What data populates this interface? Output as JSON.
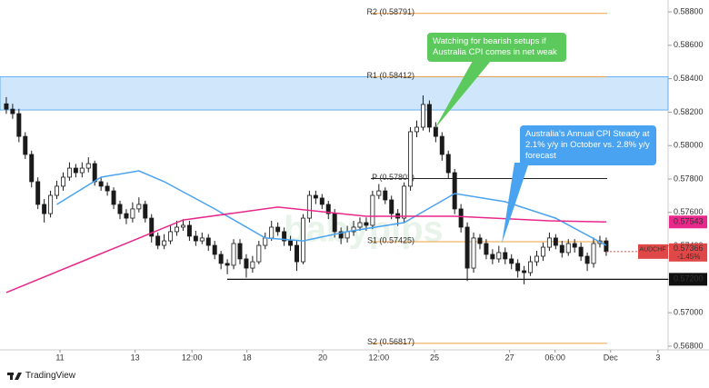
{
  "chart_data": {
    "type": "candlestick",
    "symbol": "AUDCHF",
    "change": "-1.45%",
    "watermark": "babypips",
    "brand": "TradingView",
    "up_color": "#ffffff",
    "down_color": "#1a1a1a",
    "ylim": [
      0.56778,
      0.58871
    ],
    "yticks": [
      {
        "value": 0.568,
        "label": "0.56800"
      },
      {
        "value": 0.57,
        "label": "0.57000"
      },
      {
        "value": 0.572,
        "label": "0.57200"
      },
      {
        "value": 0.574,
        "label": "0.57400"
      },
      {
        "value": 0.576,
        "label": "0.57600"
      },
      {
        "value": 0.578,
        "label": "0.57800"
      },
      {
        "value": 0.58,
        "label": "0.58000"
      },
      {
        "value": 0.582,
        "label": "0.58200"
      },
      {
        "value": 0.584,
        "label": "0.58400"
      },
      {
        "value": 0.586,
        "label": "0.58600"
      },
      {
        "value": 0.588,
        "label": "0.58800"
      }
    ],
    "xlim": [
      -1,
      104.8
    ],
    "xticks": [
      {
        "value": 8.5,
        "label": "11"
      },
      {
        "value": 20.4,
        "label": "13"
      },
      {
        "value": 29.4,
        "label": "12:00"
      },
      {
        "value": 38.1,
        "label": "18"
      },
      {
        "value": 50.1,
        "label": "20"
      },
      {
        "value": 59,
        "label": "12:00"
      },
      {
        "value": 67.8,
        "label": "25"
      },
      {
        "value": 79.7,
        "label": "27"
      },
      {
        "value": 86.9,
        "label": "06:00"
      },
      {
        "value": 95.7,
        "label": "Dec"
      },
      {
        "value": 103.2,
        "label": "3"
      }
    ],
    "open": [
      0.5825,
      0.58218,
      0.58191,
      0.58055,
      0.57947,
      0.57784,
      0.57648,
      0.57593,
      0.57702,
      0.57757,
      0.57811,
      0.57865,
      0.57838,
      0.57865,
      0.57892,
      0.57784,
      0.57757,
      0.57729,
      0.57648,
      0.57593,
      0.57566,
      0.57621,
      0.57648,
      0.57566,
      0.57458,
      0.57403,
      0.5743,
      0.57485,
      0.57512,
      0.57523,
      0.57458,
      0.5743,
      0.57447,
      0.57403,
      0.57349,
      0.57295,
      0.57284,
      0.57414,
      0.57322,
      0.57267,
      0.57305,
      0.57403,
      0.57447,
      0.57512,
      0.57485,
      0.5743,
      0.57403,
      0.57305,
      0.57566,
      0.57702,
      0.57686,
      0.57648,
      0.57593,
      0.57485,
      0.57447,
      0.57485,
      0.57512,
      0.57539,
      0.57523,
      0.57702,
      0.57729,
      0.57675,
      0.57593,
      0.57566,
      0.57757,
      0.58083,
      0.5811,
      0.58246,
      0.5811,
      0.58055,
      0.57947,
      0.57838,
      0.57621,
      0.57512,
      0.57267,
      0.57447,
      0.57414,
      0.57349,
      0.57322,
      0.5736,
      0.57322,
      0.57295,
      0.57251,
      0.5724,
      0.57305,
      0.57338,
      0.57392,
      0.57447,
      0.57403,
      0.5736,
      0.57414,
      0.57392,
      0.57338,
      0.57295,
      0.57414,
      0.5743
    ],
    "high": [
      0.5829,
      0.5825,
      0.5822,
      0.5808,
      0.5797,
      0.5781,
      0.5768,
      0.5773,
      0.5779,
      0.5784,
      0.579,
      0.5789,
      0.579,
      0.5793,
      0.5791,
      0.5781,
      0.5778,
      0.5775,
      0.5767,
      0.5762,
      0.5766,
      0.5769,
      0.5767,
      0.5759,
      0.5748,
      0.5747,
      0.5752,
      0.5755,
      0.5756,
      0.5755,
      0.5749,
      0.5748,
      0.5747,
      0.5743,
      0.5737,
      0.5732,
      0.5744,
      0.5744,
      0.5735,
      0.5734,
      0.5743,
      0.5748,
      0.5755,
      0.5754,
      0.5751,
      0.5746,
      0.5743,
      0.5759,
      0.5773,
      0.5773,
      0.5771,
      0.5767,
      0.5762,
      0.5751,
      0.5752,
      0.5755,
      0.5757,
      0.5757,
      0.5773,
      0.5777,
      0.5775,
      0.577,
      0.5762,
      0.5778,
      0.5811,
      0.5815,
      0.583,
      0.5827,
      0.5814,
      0.5808,
      0.5797,
      0.5786,
      0.5765,
      0.5754,
      0.5748,
      0.5747,
      0.5744,
      0.5738,
      0.574,
      0.5739,
      0.5735,
      0.5732,
      0.5728,
      0.5734,
      0.5737,
      0.5742,
      0.5748,
      0.5747,
      0.5743,
      0.5744,
      0.5744,
      0.5742,
      0.5736,
      0.5745,
      0.5746,
      0.5745
    ],
    "low": [
      0.5819,
      0.5816,
      0.5802,
      0.5792,
      0.5775,
      0.5762,
      0.5754,
      0.5757,
      0.5768,
      0.5773,
      0.5779,
      0.5781,
      0.5781,
      0.5784,
      0.5776,
      0.5773,
      0.577,
      0.5762,
      0.5756,
      0.5753,
      0.5754,
      0.576,
      0.5754,
      0.5742,
      0.5738,
      0.5738,
      0.5741,
      0.5746,
      0.5749,
      0.5743,
      0.574,
      0.5741,
      0.5737,
      0.5732,
      0.5726,
      0.5723,
      0.5726,
      0.5729,
      0.5721,
      0.5724,
      0.5729,
      0.5738,
      0.5743,
      0.5746,
      0.574,
      0.5737,
      0.5725,
      0.5729,
      0.5754,
      0.5765,
      0.5762,
      0.5756,
      0.5745,
      0.5741,
      0.5742,
      0.5746,
      0.5749,
      0.5749,
      0.575,
      0.5768,
      0.5765,
      0.5756,
      0.5752,
      0.5754,
      0.5773,
      0.5805,
      0.5809,
      0.5808,
      0.5802,
      0.5791,
      0.578,
      0.5759,
      0.5748,
      0.5719,
      0.5724,
      0.5738,
      0.5732,
      0.5729,
      0.573,
      0.5729,
      0.5726,
      0.5721,
      0.5717,
      0.5722,
      0.5728,
      0.5731,
      0.5737,
      0.5738,
      0.5733,
      0.5734,
      0.5736,
      0.5731,
      0.5725,
      0.5727,
      0.5739,
      0.5734
    ],
    "close": [
      0.58218,
      0.58191,
      0.58055,
      0.57947,
      0.57784,
      0.57648,
      0.57593,
      0.57702,
      0.57757,
      0.57811,
      0.57865,
      0.57838,
      0.57865,
      0.57892,
      0.57784,
      0.57757,
      0.57729,
      0.57648,
      0.57593,
      0.57566,
      0.57621,
      0.57648,
      0.57566,
      0.57458,
      0.57403,
      0.5743,
      0.57485,
      0.57512,
      0.57523,
      0.57458,
      0.5743,
      0.57447,
      0.57403,
      0.57349,
      0.57295,
      0.57284,
      0.57414,
      0.57322,
      0.57267,
      0.57305,
      0.57403,
      0.57447,
      0.57512,
      0.57485,
      0.5743,
      0.57403,
      0.57305,
      0.57566,
      0.57702,
      0.57686,
      0.57648,
      0.57593,
      0.57485,
      0.57447,
      0.57485,
      0.57512,
      0.57539,
      0.57523,
      0.57702,
      0.57729,
      0.57675,
      0.57593,
      0.57566,
      0.57757,
      0.58083,
      0.5811,
      0.58246,
      0.5811,
      0.58055,
      0.57947,
      0.57838,
      0.57621,
      0.57512,
      0.57267,
      0.57447,
      0.57414,
      0.57349,
      0.57322,
      0.5736,
      0.57322,
      0.57295,
      0.57251,
      0.5724,
      0.57305,
      0.57338,
      0.57392,
      0.57447,
      0.57403,
      0.5736,
      0.57414,
      0.57392,
      0.57338,
      0.57295,
      0.57414,
      0.5743,
      0.57366
    ],
    "lines": [
      {
        "color": "#4aa3f0",
        "x": [
          8,
          15,
          21,
          25,
          33,
          41,
          47,
          54,
          63,
          71,
          79,
          87,
          95
        ],
        "values": [
          0.57648,
          0.57811,
          0.57849,
          0.57784,
          0.57621,
          0.57447,
          0.5743,
          0.57485,
          0.57539,
          0.57713,
          0.57664,
          0.57566,
          0.57403
        ]
      },
      {
        "color": "#e8288a",
        "x": [
          0,
          14,
          28,
          43,
          57,
          71,
          86,
          95
        ],
        "values": [
          0.57121,
          0.57338,
          0.57555,
          0.57632,
          0.57577,
          0.57577,
          0.5755,
          0.57543
        ]
      }
    ],
    "ma_tag": 0.57543,
    "levels": [
      {
        "label": "R2 (0.58791)",
        "value": 0.58791,
        "color": "#f0a040"
      },
      {
        "label": "R1 (0.58412)",
        "value": 0.58412,
        "color": "#f0a040"
      },
      {
        "label": "P (0.57803)",
        "value": 0.57803,
        "color": "#222222"
      },
      {
        "label": "S1 (0.57425)",
        "value": 0.57425,
        "color": "#f0a040"
      },
      {
        "label": "S2 (0.56817)",
        "value": 0.56817,
        "color": "#f0a040"
      }
    ],
    "zone": [
      0.58213,
      0.58412
    ],
    "support": {
      "value": 0.572,
      "label": "0.57200"
    },
    "annotations": [
      {
        "text": "Watching for bearish setups if Australia CPI comes in net weak",
        "color": "#5cc95c"
      },
      {
        "text": "Australia's Annual CPI Steady at 2.1% y/y in October vs. 2.8% y/y forecast",
        "color": "#4aa3f0"
      }
    ]
  }
}
